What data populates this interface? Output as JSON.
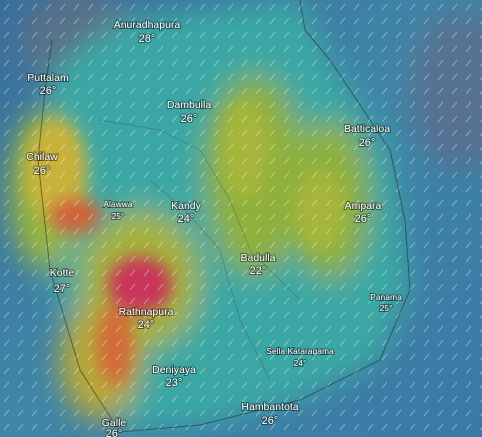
{
  "cities": [
    {
      "name": "Anuradhapura",
      "temp": "28°"
    },
    {
      "name": "Puttalam",
      "temp": "26°"
    },
    {
      "name": "Dambulla",
      "temp": "26°"
    },
    {
      "name": "Batticaloa",
      "temp": "26°"
    },
    {
      "name": "Chilaw",
      "temp": "26°"
    },
    {
      "name": "Alawwa",
      "temp": "25°"
    },
    {
      "name": "Kandy",
      "temp": "24°"
    },
    {
      "name": "Ampara",
      "temp": "26°"
    },
    {
      "name": "Badulla",
      "temp": "22°"
    },
    {
      "name": "Kotte",
      "temp": "27°"
    },
    {
      "name": "Panama",
      "temp": "25°"
    },
    {
      "name": "Rathnapura",
      "temp": "24°"
    },
    {
      "name": "Sella Kataragama",
      "temp": "24°"
    },
    {
      "name": "Deniyaya",
      "temp": "23°"
    },
    {
      "name": "Hambantota",
      "temp": "26°"
    },
    {
      "name": "Galle",
      "temp": "26°"
    }
  ]
}
